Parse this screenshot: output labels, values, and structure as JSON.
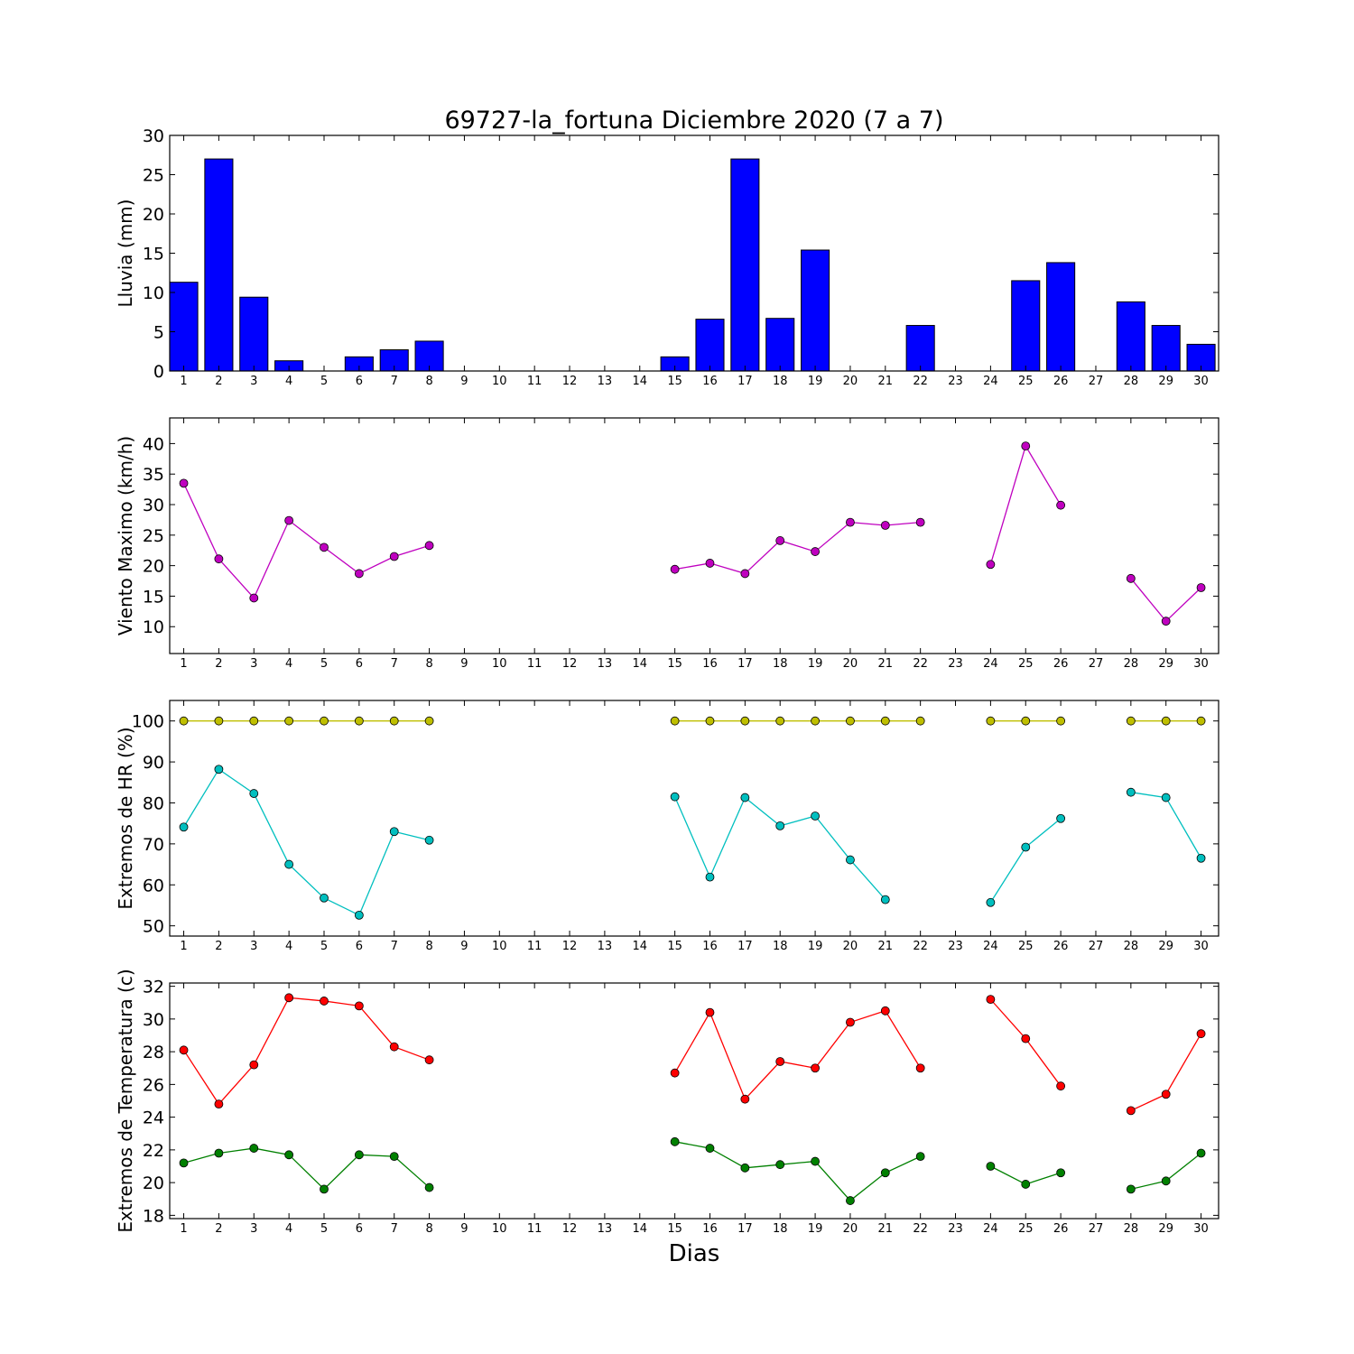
{
  "title": "69727-la_fortuna Diciembre 2020  (7 a 7)",
  "xlabel": "Dias",
  "chart_data": [
    {
      "type": "bar",
      "ylabel": "Lluvia (mm)",
      "ylim": [
        0,
        30
      ],
      "yticks": [
        0,
        5,
        10,
        15,
        20,
        25,
        30
      ],
      "xlim": [
        0.6,
        30.5
      ],
      "categories": [
        1,
        2,
        3,
        4,
        5,
        6,
        7,
        8,
        9,
        10,
        11,
        12,
        13,
        14,
        15,
        16,
        17,
        18,
        19,
        20,
        21,
        22,
        23,
        24,
        25,
        26,
        27,
        28,
        29,
        30
      ],
      "color": "#0000ff",
      "series": [
        {
          "values": [
            11.3,
            27.0,
            9.4,
            1.3,
            0,
            1.8,
            2.7,
            3.8,
            0,
            0,
            0,
            0,
            0,
            0,
            1.8,
            6.6,
            27.0,
            6.7,
            15.4,
            0,
            0,
            5.8,
            0,
            0,
            11.5,
            13.8,
            0,
            8.8,
            5.8,
            3.4
          ]
        }
      ]
    },
    {
      "type": "line",
      "ylabel": "Viento Maximo (km/h)",
      "ylim": [
        5.6,
        44.2
      ],
      "yticks": [
        10,
        15,
        20,
        25,
        30,
        35,
        40
      ],
      "xlim": [
        0.6,
        30.5
      ],
      "x": [
        1,
        2,
        3,
        4,
        5,
        6,
        7,
        8,
        9,
        10,
        11,
        12,
        13,
        14,
        15,
        16,
        17,
        18,
        19,
        20,
        21,
        22,
        23,
        24,
        25,
        26,
        27,
        28,
        29,
        30
      ],
      "series": [
        {
          "color": "#bf00bf",
          "values": [
            33.5,
            21.1,
            14.7,
            27.4,
            23.0,
            18.7,
            21.5,
            23.3,
            null,
            null,
            null,
            null,
            null,
            null,
            19.4,
            20.4,
            18.7,
            24.1,
            22.3,
            27.1,
            26.6,
            27.1,
            null,
            20.2,
            39.6,
            29.9,
            null,
            17.9,
            10.9,
            16.4
          ]
        }
      ]
    },
    {
      "type": "line",
      "ylabel": "Extremos de HR (%)",
      "ylim": [
        47.5,
        105
      ],
      "yticks": [
        50,
        60,
        70,
        80,
        90,
        100
      ],
      "xlim": [
        0.6,
        30.5
      ],
      "x": [
        1,
        2,
        3,
        4,
        5,
        6,
        7,
        8,
        9,
        10,
        11,
        12,
        13,
        14,
        15,
        16,
        17,
        18,
        19,
        20,
        21,
        22,
        23,
        24,
        25,
        26,
        27,
        28,
        29,
        30
      ],
      "series": [
        {
          "color": "#bfbf00",
          "values": [
            100,
            100,
            100,
            100,
            100,
            100,
            100,
            100,
            null,
            null,
            null,
            null,
            null,
            null,
            100,
            100,
            100,
            100,
            100,
            100,
            100,
            100,
            null,
            100,
            100,
            100,
            null,
            100,
            100,
            100
          ]
        },
        {
          "color": "#00bfbf",
          "values": [
            74.1,
            88.2,
            82.3,
            65.0,
            56.8,
            52.6,
            73.0,
            70.9,
            null,
            null,
            null,
            null,
            null,
            null,
            81.5,
            61.9,
            81.3,
            74.4,
            76.8,
            66.1,
            56.4,
            null,
            null,
            55.7,
            69.2,
            76.2,
            null,
            82.6,
            81.3,
            66.5
          ]
        }
      ]
    },
    {
      "type": "line",
      "ylabel": "Extremos de Temperatura (c)",
      "ylim": [
        17.8,
        32.2
      ],
      "yticks": [
        18,
        20,
        22,
        24,
        26,
        28,
        30,
        32
      ],
      "xlim": [
        0.6,
        30.5
      ],
      "x": [
        1,
        2,
        3,
        4,
        5,
        6,
        7,
        8,
        9,
        10,
        11,
        12,
        13,
        14,
        15,
        16,
        17,
        18,
        19,
        20,
        21,
        22,
        23,
        24,
        25,
        26,
        27,
        28,
        29,
        30
      ],
      "series": [
        {
          "color": "#ff0000",
          "values": [
            28.1,
            24.8,
            27.2,
            31.3,
            31.1,
            30.8,
            28.3,
            27.5,
            null,
            null,
            null,
            null,
            null,
            null,
            26.7,
            30.4,
            25.1,
            27.4,
            27.0,
            29.8,
            30.5,
            27.0,
            null,
            31.2,
            28.8,
            25.9,
            null,
            24.4,
            25.4,
            29.1
          ]
        },
        {
          "color": "#008000",
          "values": [
            21.2,
            21.8,
            22.1,
            21.7,
            19.6,
            21.7,
            21.6,
            19.7,
            null,
            null,
            null,
            null,
            null,
            null,
            22.5,
            22.1,
            20.9,
            21.1,
            21.3,
            18.9,
            20.6,
            21.6,
            null,
            21.0,
            19.9,
            20.6,
            null,
            19.6,
            20.1,
            21.8
          ]
        }
      ]
    }
  ]
}
